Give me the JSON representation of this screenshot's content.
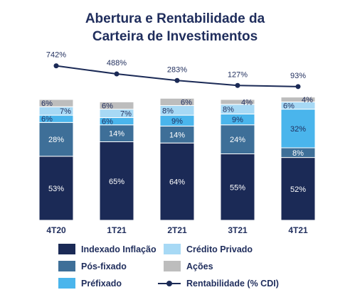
{
  "title_line1": "Abertura e Rentabilidade da",
  "title_line2": "Carteira de Investimentos",
  "colors": {
    "indexado": "#1b2a56",
    "posfixado": "#3e6f98",
    "prefixado": "#4ab5ec",
    "credito": "#a7d9f5",
    "acoes": "#bdbdbd",
    "line": "#1b2a56"
  },
  "chart_data": {
    "type": "bar",
    "stacked": true,
    "categories": [
      "4T20",
      "1T21",
      "2T21",
      "3T21",
      "4T21"
    ],
    "series": [
      {
        "name": "Indexado Inflação",
        "key": "indexado",
        "values": [
          53,
          65,
          64,
          55,
          52
        ],
        "labels": [
          "53%",
          "65%",
          "64%",
          "55%",
          "52%"
        ]
      },
      {
        "name": "Pós-fixado",
        "key": "posfixado",
        "values": [
          28,
          14,
          14,
          24,
          8
        ],
        "labels": [
          "28%",
          "14%",
          "14%",
          "24%",
          "8%"
        ]
      },
      {
        "name": "Préfixado",
        "key": "prefixado",
        "values": [
          6,
          6,
          9,
          9,
          32
        ],
        "labels": [
          "6%",
          "6%",
          "9%",
          "9%",
          "32%"
        ]
      },
      {
        "name": "Crédito Privado",
        "key": "credito",
        "values": [
          7,
          7,
          8,
          8,
          6
        ],
        "labels": [
          "7%",
          "7%",
          "8%",
          "8%",
          "6%"
        ]
      },
      {
        "name": "Ações",
        "key": "acoes",
        "values": [
          6,
          6,
          6,
          4,
          4
        ],
        "labels": [
          "6%",
          "6%",
          "6%",
          "4%",
          "4%"
        ]
      }
    ],
    "line": {
      "name": "Rentabilidade (% CDI)",
      "values": [
        742,
        488,
        283,
        127,
        93
      ],
      "labels": [
        "742%",
        "488%",
        "283%",
        "127%",
        "93%"
      ]
    },
    "legend_position": "bottom",
    "grid": false
  },
  "legend": {
    "items": [
      {
        "label": "Indexado Inflação",
        "key": "indexado",
        "kind": "box"
      },
      {
        "label": "Crédito Privado",
        "key": "credito",
        "kind": "box"
      },
      {
        "label": "Pós-fixado",
        "key": "posfixado",
        "kind": "box"
      },
      {
        "label": "Ações",
        "key": "acoes",
        "kind": "box"
      },
      {
        "label": "Préfixado",
        "key": "prefixado",
        "kind": "box"
      },
      {
        "label": "Rentabilidade (% CDI)",
        "key": "line",
        "kind": "line"
      }
    ]
  }
}
